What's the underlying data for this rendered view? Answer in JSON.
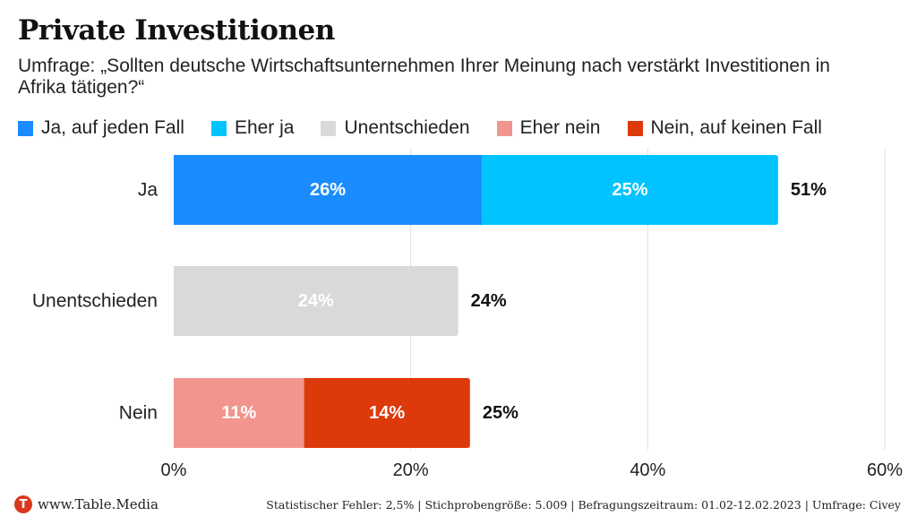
{
  "title": "Private Investitionen",
  "subtitle": "Umfrage: „Sollten deutsche Wirtschaftsunternehmen Ihrer Meinung nach verstärkt Investitionen in Afrika tätigen?“",
  "legend": [
    {
      "label": "Ja, auf jeden Fall",
      "color": "#1a8cff"
    },
    {
      "label": "Eher ja",
      "color": "#00c3ff"
    },
    {
      "label": "Unentschieden",
      "color": "#d9d9d9"
    },
    {
      "label": "Eher nein",
      "color": "#f1958e"
    },
    {
      "label": "Nein, auf keinen Fall",
      "color": "#dd3a0c"
    }
  ],
  "footer": {
    "brand_logo_letter": "T",
    "brand": "www.Table.Media",
    "source": "Statistischer Fehler: 2,5% | Stichprobengröße: 5.009 | Befragungszeitraum: 01.02-12.02.2023 | Umfrage: Civey"
  },
  "chart_data": {
    "type": "bar",
    "orientation": "horizontal",
    "stacked": true,
    "categories": [
      "Ja",
      "Unentschieden",
      "Nein"
    ],
    "series": [
      {
        "name": "Ja, auf jeden Fall",
        "color": "#1a8cff",
        "values": [
          26,
          0,
          0
        ],
        "labels": [
          "26%",
          "",
          ""
        ]
      },
      {
        "name": "Eher ja",
        "color": "#00c3ff",
        "values": [
          25,
          0,
          0
        ],
        "labels": [
          "25%",
          "",
          ""
        ]
      },
      {
        "name": "Unentschieden",
        "color": "#d9d9d9",
        "values": [
          0,
          24,
          0
        ],
        "labels": [
          "",
          "24%",
          ""
        ]
      },
      {
        "name": "Eher nein",
        "color": "#f1958e",
        "values": [
          0,
          0,
          11
        ],
        "labels": [
          "",
          "",
          "11%"
        ]
      },
      {
        "name": "Nein, auf keinen Fall",
        "color": "#dd3a0c",
        "values": [
          0,
          0,
          14
        ],
        "labels": [
          "",
          "",
          "14%"
        ]
      }
    ],
    "totals": [
      "51%",
      "24%",
      "25%"
    ],
    "xlim": [
      0,
      60
    ],
    "xticks": [
      0,
      20,
      40,
      60
    ],
    "xtick_labels": [
      "0%",
      "20%",
      "40%",
      "60%"
    ],
    "grid": true,
    "legend_position": "top"
  }
}
